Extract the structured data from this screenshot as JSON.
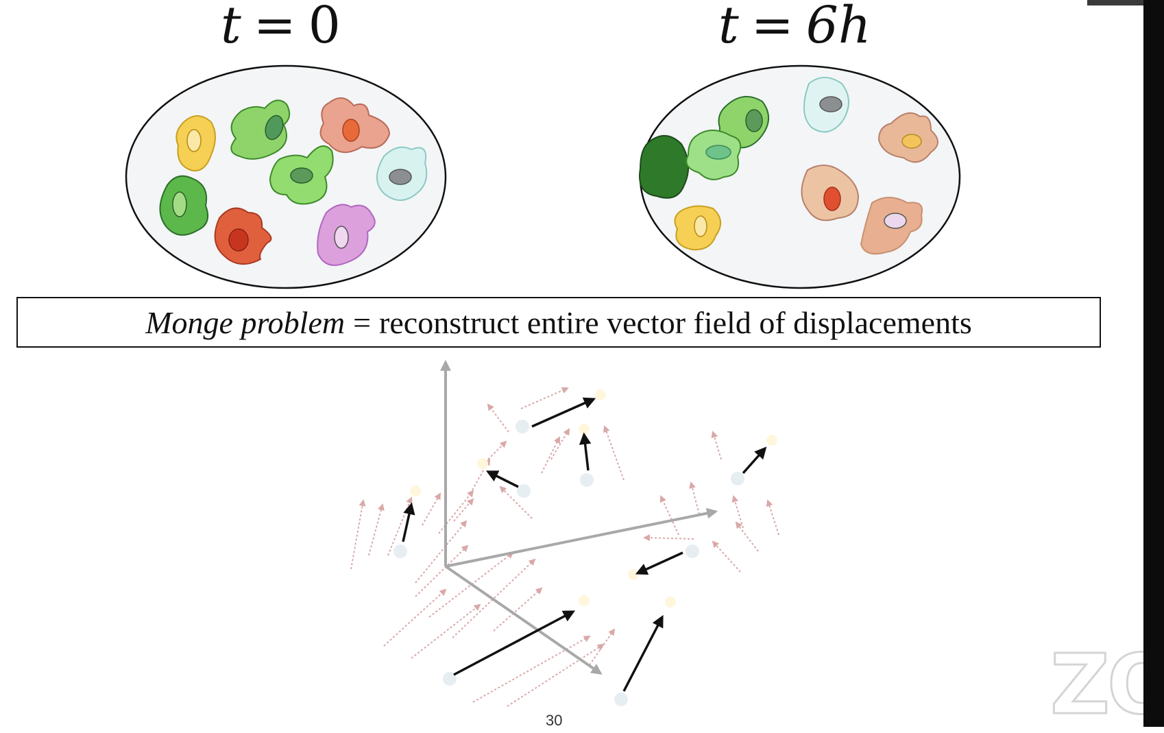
{
  "slide": {
    "label_left": {
      "var": "t",
      "eq": "=",
      "value": "0"
    },
    "label_right": {
      "var": "t",
      "eq": "=",
      "value": "6h"
    },
    "monge": {
      "italic": "Monge problem",
      "sep": "=",
      "text": "reconstruct entire vector field of displacements"
    },
    "page_number": "30",
    "watermark": "ZO"
  },
  "colors": {
    "yellow": "#f2c94c",
    "green": "#8fd46a",
    "dark_green": "#3f8f3a",
    "salmon": "#e9a08a",
    "red_orange": "#e0603e",
    "light_cyan": "#d8f2f0",
    "purple": "#d49ad8",
    "tan": "#e8b898",
    "faint_arrow": "#d9a8a8",
    "axis": "#a8a8a8"
  },
  "icons": {
    "dish_left": "petri-dish-icon",
    "dish_right": "petri-dish-icon",
    "cell": "cell-icon"
  }
}
